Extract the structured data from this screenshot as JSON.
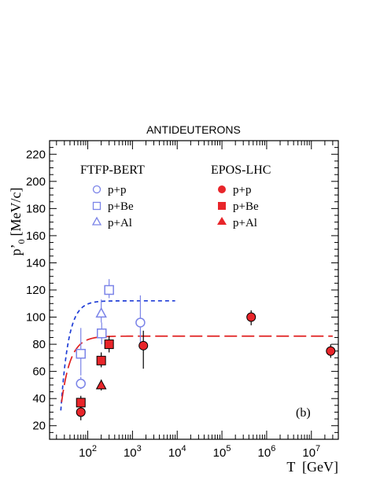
{
  "chart_data": {
    "type": "scatter",
    "title": "ANTIDEUTERONS",
    "xlabel": "T  [GeV]",
    "ylabel": "p'0 [MeV/c]",
    "ylabel_main": "p",
    "ylabel_prime": "’",
    "ylabel_sub": "0",
    "ylabel_unit": "[MeV/c]",
    "xscale": "log",
    "xlim": [
      14,
      40000000
    ],
    "ylim": [
      10,
      230
    ],
    "yticks": [
      20,
      40,
      60,
      80,
      100,
      120,
      140,
      160,
      180,
      200,
      220
    ],
    "xticks": [
      {
        "value": 100,
        "base": "10",
        "exp": "2"
      },
      {
        "value": 1000,
        "base": "10",
        "exp": "3"
      },
      {
        "value": 10000,
        "base": "10",
        "exp": "4"
      },
      {
        "value": 100000,
        "base": "10",
        "exp": "5"
      },
      {
        "value": 1000000,
        "base": "10",
        "exp": "6"
      },
      {
        "value": 10000000,
        "base": "10",
        "exp": "7"
      }
    ],
    "legend": {
      "ftfp_header": "FTFP-BERT",
      "epos_header": "EPOS-LHC",
      "ftfp_items": [
        "p+p",
        "p+Be",
        "p+Al"
      ],
      "epos_items": [
        "p+p",
        "p+Be",
        "p+Al"
      ]
    },
    "panel_label": "(b)",
    "colors": {
      "ftfp": "#7b84e8",
      "ftfp_curve": "#1f3dd6",
      "epos": "#e8252a",
      "epos_curve": "#e02020"
    },
    "series": [
      {
        "name": "FTFP-BERT p+p",
        "marker": "open-circle",
        "points": [
          {
            "x": 70,
            "y": 51,
            "ylo": 47,
            "yhi": 56
          },
          {
            "x": 1500,
            "y": 96,
            "ylo": 78,
            "yhi": 116
          }
        ]
      },
      {
        "name": "FTFP-BERT p+Be",
        "marker": "open-square",
        "points": [
          {
            "x": 70,
            "y": 73,
            "ylo": 57,
            "yhi": 92
          },
          {
            "x": 205,
            "y": 88,
            "ylo": 80,
            "yhi": 96
          },
          {
            "x": 300,
            "y": 120,
            "ylo": 114,
            "yhi": 128
          }
        ]
      },
      {
        "name": "FTFP-BERT p+Al",
        "marker": "open-triangle",
        "points": [
          {
            "x": 200,
            "y": 103,
            "ylo": 96,
            "yhi": 113
          }
        ]
      },
      {
        "name": "EPOS-LHC p+p",
        "marker": "filled-circle",
        "points": [
          {
            "x": 70,
            "y": 30,
            "ylo": 24,
            "yhi": 37
          },
          {
            "x": 1750,
            "y": 79,
            "ylo": 62,
            "yhi": 90
          },
          {
            "x": 450000,
            "y": 100,
            "ylo": 94,
            "yhi": 105
          },
          {
            "x": 27000000,
            "y": 75,
            "ylo": 70,
            "yhi": 80
          }
        ]
      },
      {
        "name": "EPOS-LHC p+Be",
        "marker": "filled-square",
        "points": [
          {
            "x": 70,
            "y": 37,
            "ylo": 33,
            "yhi": 42
          },
          {
            "x": 200,
            "y": 68,
            "ylo": 63,
            "yhi": 74
          },
          {
            "x": 300,
            "y": 80,
            "ylo": 74,
            "yhi": 86
          }
        ]
      },
      {
        "name": "EPOS-LHC p+Al",
        "marker": "filled-triangle",
        "points": [
          {
            "x": 200,
            "y": 50,
            "ylo": 46,
            "yhi": 54
          }
        ]
      }
    ],
    "fits": [
      {
        "series": "FTFP-BERT",
        "style": "short-dash",
        "plateau": 112,
        "x0": 22,
        "scale_decades": 0.17,
        "xmin": 25,
        "xmax": 9000
      },
      {
        "series": "EPOS-LHC",
        "style": "long-dash",
        "plateau": 86,
        "x0": 20,
        "scale_decades": 0.2,
        "xmin": 26,
        "xmax": 30000000
      }
    ]
  }
}
